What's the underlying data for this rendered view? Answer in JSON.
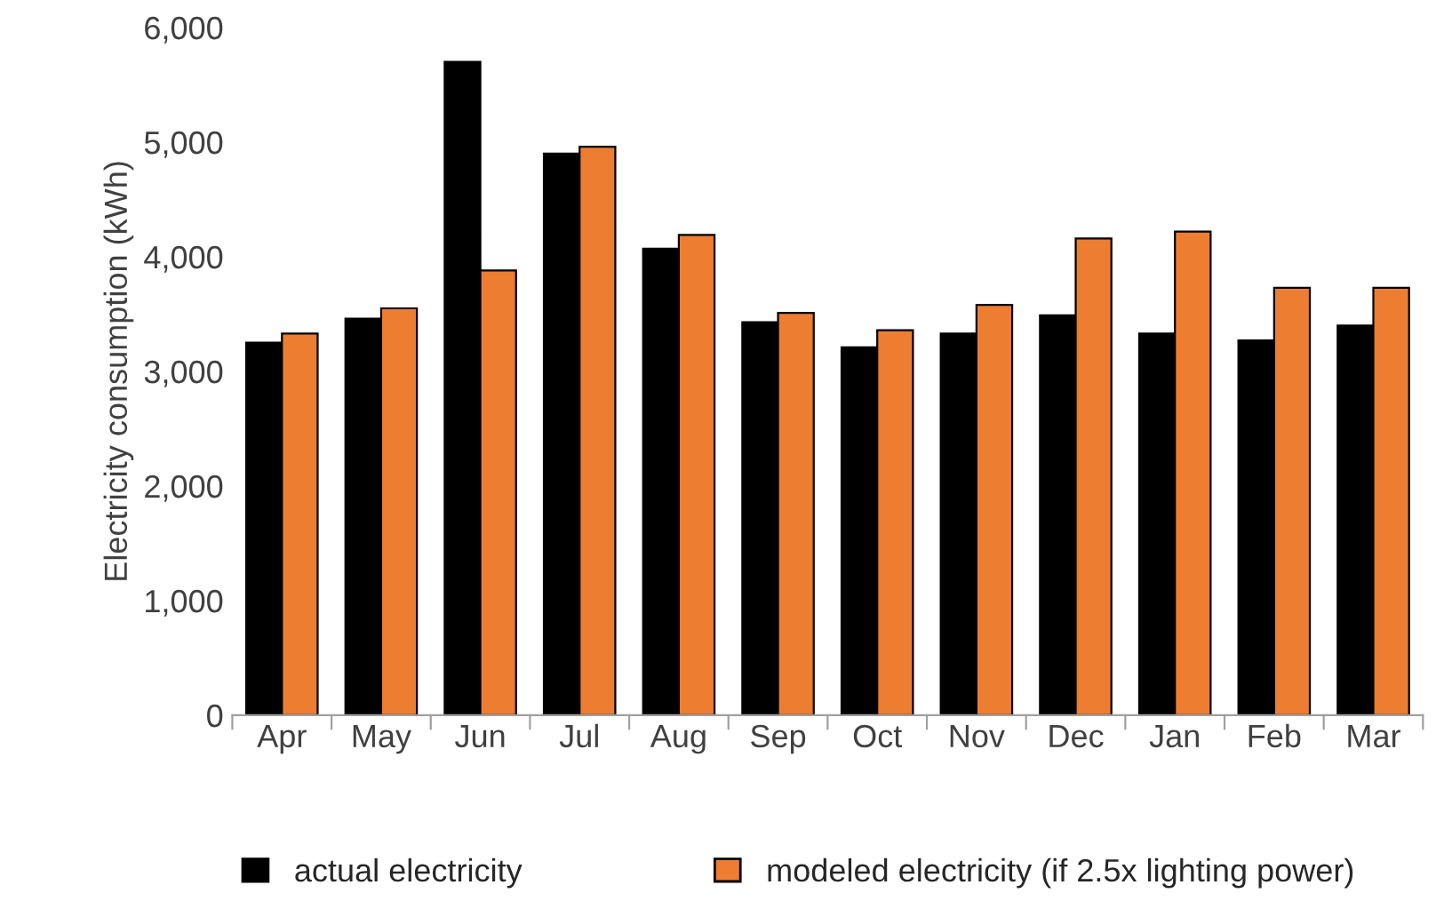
{
  "chart_data": {
    "type": "bar",
    "ylabel": "Electricity consumption (kWh)",
    "categories": [
      "Apr",
      "May",
      "Jun",
      "Jul",
      "Aug",
      "Sep",
      "Oct",
      "Nov",
      "Dec",
      "Jan",
      "Feb",
      "Mar"
    ],
    "series": [
      {
        "name": "actual electricity",
        "color": "#000000",
        "values": [
          3250,
          3460,
          5700,
          4900,
          4070,
          3430,
          3210,
          3330,
          3490,
          3330,
          3270,
          3400
        ]
      },
      {
        "name": "modeled electricity (if 2.5x lighting power)",
        "color": "#ed7d31",
        "values": [
          3330,
          3550,
          3880,
          4960,
          4190,
          3510,
          3360,
          3580,
          4160,
          4220,
          3730,
          3730
        ]
      }
    ],
    "ylim": [
      0,
      6000
    ],
    "yticks": [
      {
        "value": 0,
        "label": "0"
      },
      {
        "value": 1000,
        "label": "1,000"
      },
      {
        "value": 2000,
        "label": "2,000"
      },
      {
        "value": 3000,
        "label": "3,000"
      },
      {
        "value": 4000,
        "label": "4,000"
      },
      {
        "value": 5000,
        "label": "5,000"
      },
      {
        "value": 6000,
        "label": "6,000"
      }
    ],
    "grid": false,
    "legend": "bottom"
  }
}
